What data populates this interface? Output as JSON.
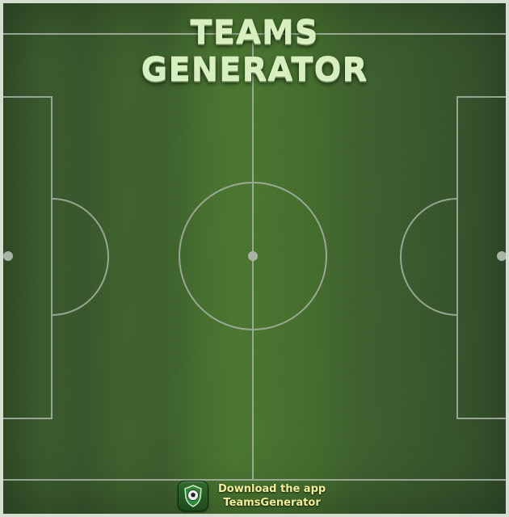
{
  "header": {
    "title_line_1": "TEAMS",
    "title_line_2": "GENERATOR"
  },
  "footer": {
    "download_label": "Download the app",
    "app_name": "TeamsGenerator",
    "app_icon": "shield-soccer-ball-icon"
  },
  "colors": {
    "pitch_green": "#46702f",
    "line_color": "#a9b3a6",
    "title_color": "#d7efbe",
    "download_text_color": "#f3ee9a"
  }
}
